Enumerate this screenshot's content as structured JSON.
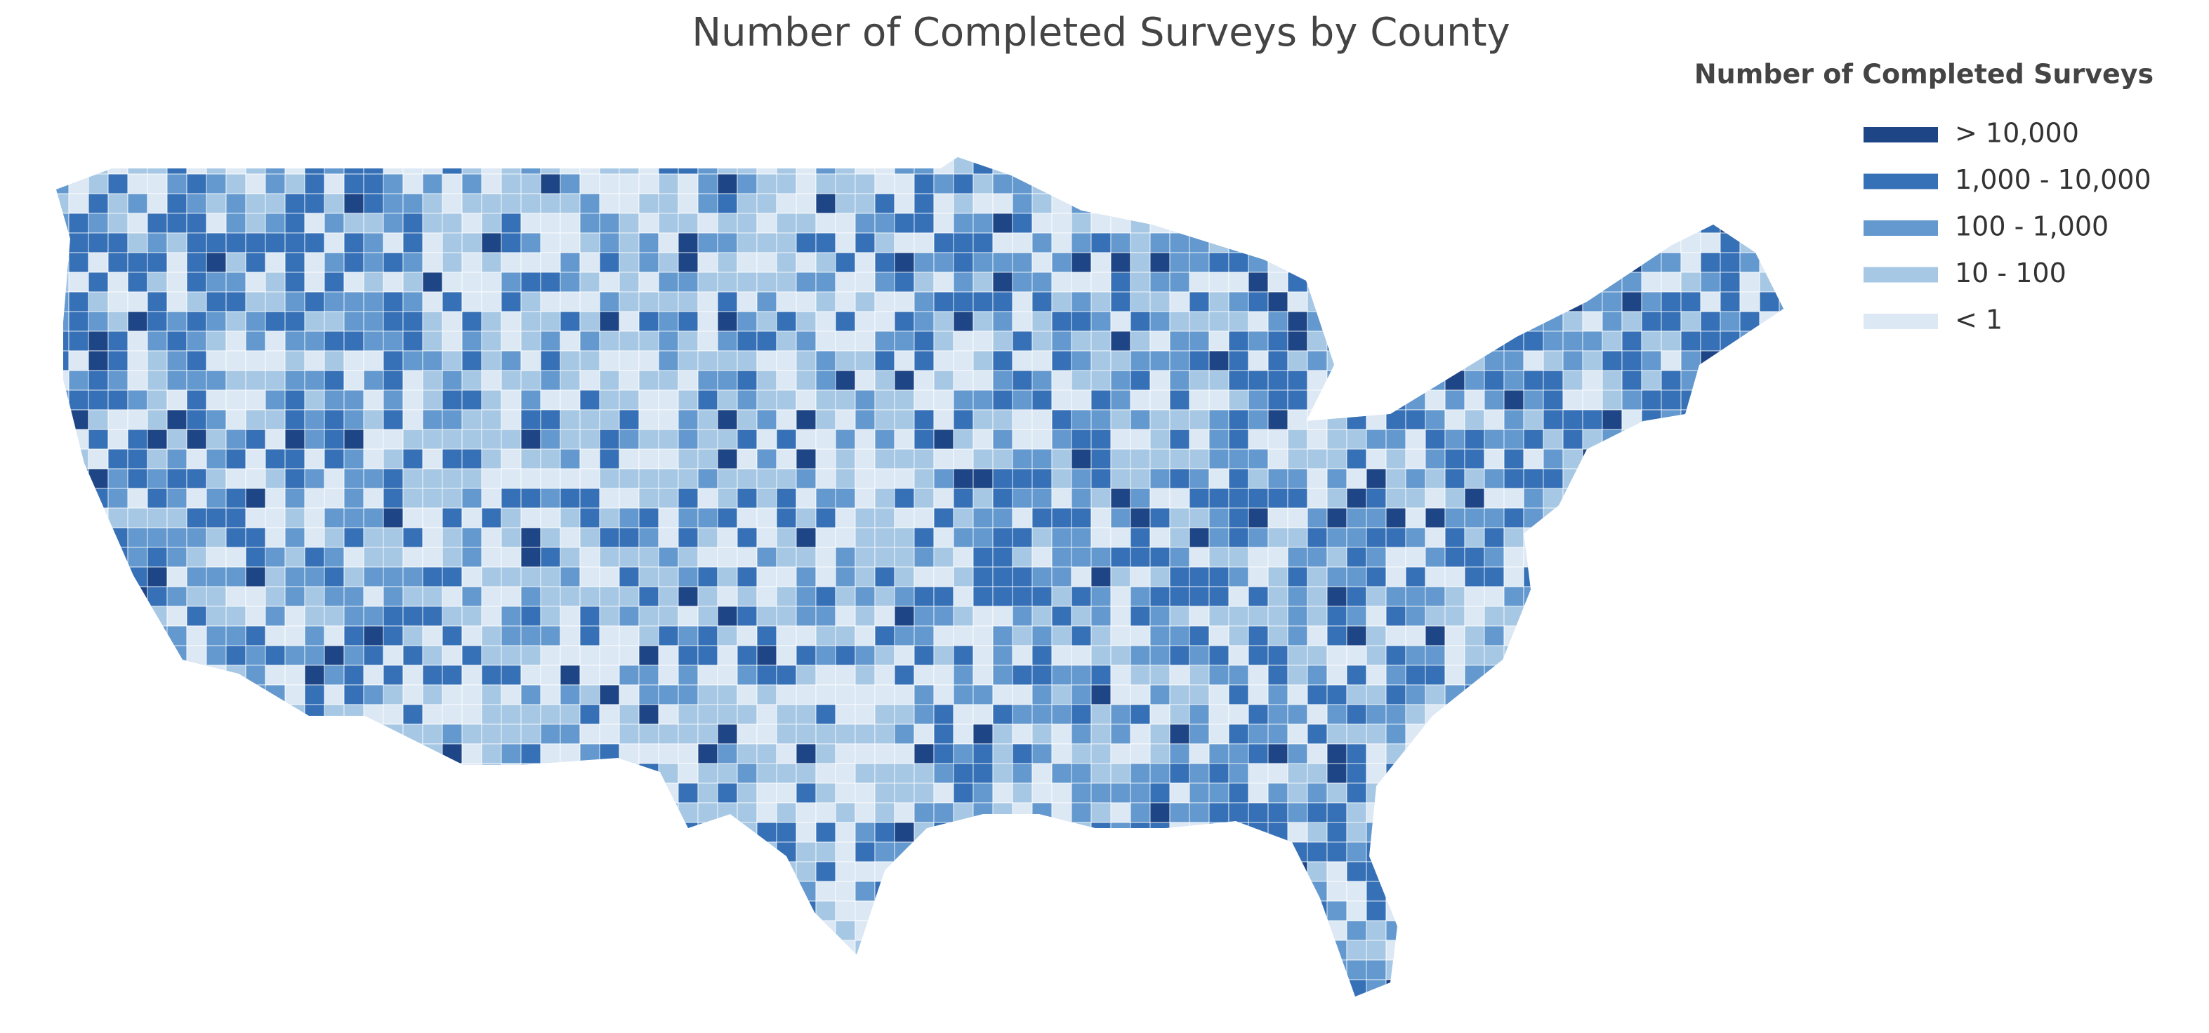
{
  "title": "Number of Completed Surveys by County",
  "legend": {
    "title": "Number of Completed Surveys",
    "items": [
      {
        "label": "> 10,000",
        "color": "#1e4585"
      },
      {
        "label": "1,000 - 10,000",
        "color": "#3670b6"
      },
      {
        "label": "100 - 1,000",
        "color": "#6499cf"
      },
      {
        "label": "10 - 100",
        "color": "#a7c8e4"
      },
      {
        "label": "< 1",
        "color": "#dde8f5"
      }
    ]
  }
}
